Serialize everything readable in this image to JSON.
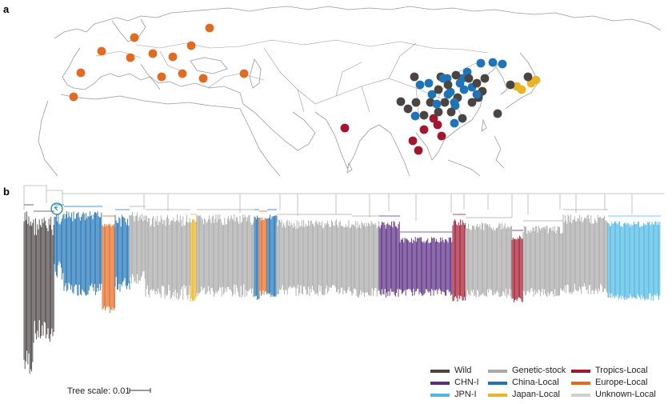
{
  "panels": {
    "a": "a",
    "b": "b"
  },
  "colors": {
    "wild": "#4a4443",
    "chn": "#5b2c82",
    "jpn": "#4cb8e3",
    "genetic": "#a9a9a9",
    "china": "#1f73b7",
    "japan": "#e8b52a",
    "tropics": "#a3172e",
    "europe": "#e36a21",
    "unknown": "#d0d0d0",
    "map_line": "#9a9a9a"
  },
  "legend": [
    {
      "key": "wild",
      "label": "Wild"
    },
    {
      "key": "chn",
      "label": "CHN-I"
    },
    {
      "key": "jpn",
      "label": "JPN-I"
    },
    {
      "key": "genetic",
      "label": "Genetic-stock"
    },
    {
      "key": "china",
      "label": "China-Local"
    },
    {
      "key": "japan",
      "label": "Japan-Local"
    },
    {
      "key": "tropics",
      "label": "Tropics-Local"
    },
    {
      "key": "europe",
      "label": "Europe-Local"
    },
    {
      "key": "unknown",
      "label": "Unknown-Local"
    }
  ],
  "scale_label": "Tree scale: 0.01"
}
